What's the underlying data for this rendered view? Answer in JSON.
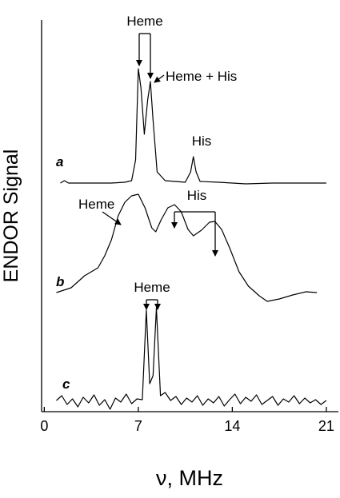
{
  "chart_data": {
    "type": "line",
    "xlabel": "ν, MHz",
    "ylabel": "ENDOR Signal",
    "xlim": [
      -0.2,
      21.9
    ],
    "xticks": [
      0,
      7,
      14,
      21
    ],
    "ylim": [
      0,
      490
    ],
    "grid": false,
    "annotations": [
      "Heme",
      "Heme + His",
      "His",
      "Heme",
      "His",
      "Heme"
    ],
    "series": [
      {
        "name": "a",
        "color": "#000000",
        "x": [
          1.2,
          1.5,
          1.8,
          3,
          5,
          6,
          6.5,
          6.8,
          7.0,
          7.2,
          7.45,
          7.7,
          7.9,
          8.1,
          8.4,
          9,
          10.5,
          10.9,
          11.1,
          11.3,
          11.6,
          13,
          15,
          17,
          19,
          21
        ],
        "values": [
          286,
          289,
          286,
          286,
          286,
          287,
          289,
          315,
          429,
          405,
          347,
          390,
          413,
          365,
          300,
          289,
          287,
          300,
          319,
          300,
          288,
          287,
          285,
          286,
          286,
          286
        ]
      },
      {
        "name": "b",
        "color": "#000000",
        "x": [
          0.9,
          2,
          3,
          4,
          4.5,
          5,
          5.5,
          6,
          6.5,
          7,
          7.5,
          8,
          8.3,
          8.7,
          9.2,
          9.7,
          10.2,
          10.7,
          11.1,
          11.7,
          12.3,
          12.7,
          13.2,
          13.8,
          14.5,
          15.2,
          16,
          16.6,
          17.5,
          18.5,
          19.5,
          20.3
        ],
        "values": [
          149,
          155,
          170,
          180,
          195,
          215,
          245,
          262,
          270,
          272,
          255,
          230,
          225,
          240,
          255,
          259,
          250,
          228,
          220,
          227,
          237,
          238,
          228,
          205,
          175,
          157,
          145,
          138,
          141,
          146,
          150,
          149
        ]
      },
      {
        "name": "c",
        "color": "#000000",
        "x": [
          0.9,
          1.3,
          1.7,
          2.1,
          2.5,
          2.9,
          3.3,
          3.7,
          4.1,
          4.5,
          4.9,
          5.3,
          5.7,
          6.1,
          6.5,
          6.9,
          7.3,
          7.6,
          7.85,
          8.1,
          8.35,
          8.65,
          9,
          9.4,
          9.8,
          10.2,
          10.6,
          11,
          11.4,
          11.8,
          12.2,
          12.6,
          13,
          13.4,
          13.8,
          14.2,
          14.6,
          15,
          15.4,
          15.8,
          16.2,
          16.6,
          17,
          17.4,
          17.8,
          18.2,
          18.6,
          19,
          19.4,
          19.8,
          20.2,
          20.6,
          21
        ],
        "values": [
          14,
          20,
          9,
          16,
          6,
          18,
          11,
          21,
          8,
          15,
          3,
          17,
          12,
          22,
          10,
          16,
          15,
          127,
          35,
          45,
          130,
          20,
          24,
          14,
          19,
          9,
          17,
          12,
          20,
          8,
          16,
          11,
          19,
          7,
          15,
          22,
          10,
          18,
          13,
          21,
          9,
          14,
          19,
          8,
          16,
          12,
          20,
          10,
          17,
          11,
          15,
          9,
          14
        ]
      }
    ]
  }
}
